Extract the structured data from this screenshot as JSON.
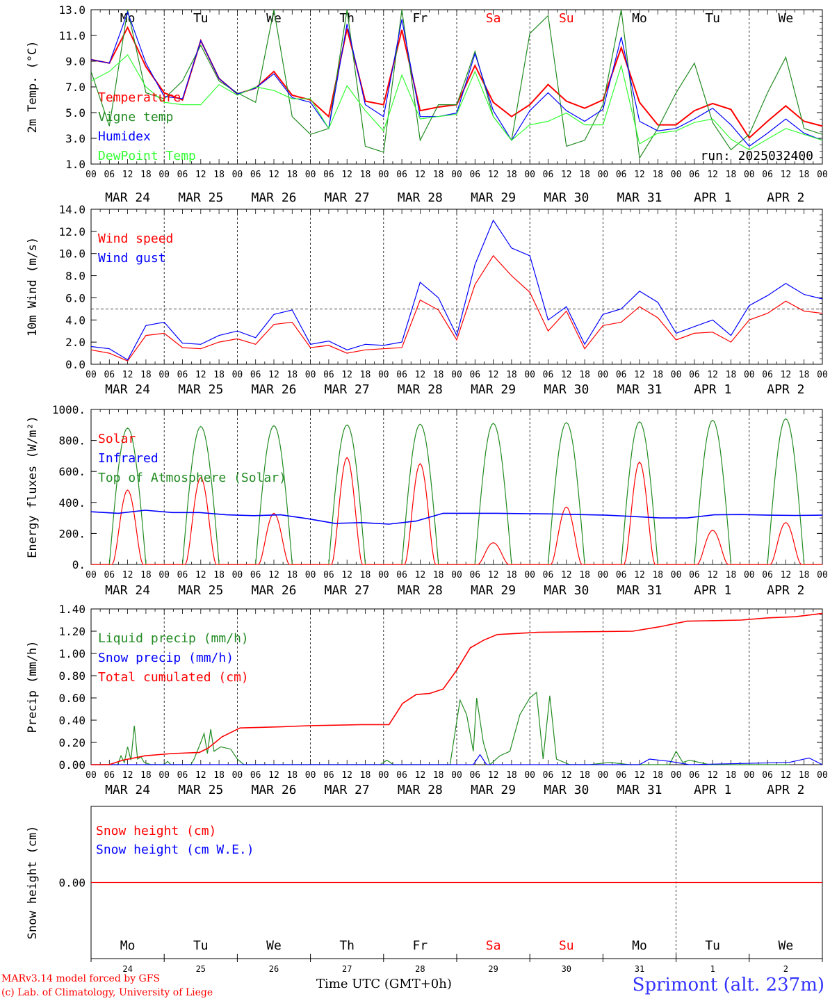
{
  "chart_data": [
    {
      "type": "line",
      "ylabel": "2m Temp. (°C)",
      "ylim": [
        1,
        14
      ],
      "yticks": [
        "1.0",
        "3.0",
        "5.0",
        "7.0",
        "9.0",
        "11.0",
        "13.0"
      ],
      "run_label": "run: 2025032400",
      "x_hours": [
        0,
        6,
        12,
        18,
        24,
        30,
        36,
        42,
        48,
        54,
        60,
        66,
        72,
        78,
        84,
        90,
        96,
        102,
        108,
        114,
        120,
        126,
        132,
        138,
        144,
        150,
        156,
        162,
        168,
        174,
        180,
        186,
        192,
        198,
        204,
        210,
        216,
        222,
        228,
        234,
        240
      ],
      "series": [
        {
          "name": "Temperature",
          "color": "#ff0000",
          "values": [
            9.8,
            9.5,
            12.5,
            9.2,
            7.0,
            6.4,
            11.4,
            8.2,
            6.9,
            7.4,
            8.8,
            6.8,
            6.4,
            5.0,
            12.4,
            6.3,
            6.0,
            12.3,
            5.5,
            5.8,
            6.0,
            9.3,
            6.2,
            5.0,
            6.0,
            7.7,
            6.3,
            5.7,
            6.4,
            10.8,
            6.2,
            4.3,
            4.3,
            5.5,
            6.1,
            5.6,
            3.2,
            4.6,
            5.9,
            4.6,
            4.2
          ]
        },
        {
          "name": "Vigne temp",
          "color": "#228b22",
          "values": [
            8.8,
            4.2,
            14.0,
            7.0,
            6.5,
            8.0,
            11.0,
            8.0,
            7.0,
            6.2,
            14.0,
            5.0,
            3.5,
            4.0,
            14.0,
            2.5,
            2.0,
            14.0,
            3.0,
            6.0,
            6.0,
            10.5,
            5.0,
            3.0,
            12.0,
            13.5,
            2.5,
            3.0,
            6.0,
            14.0,
            1.5,
            4.0,
            7.0,
            9.5,
            4.5,
            2.2,
            3.5,
            7.0,
            10.0,
            4.0,
            3.5
          ]
        },
        {
          "name": "Humidex",
          "color": "#0000ff",
          "values": [
            9.8,
            9.5,
            13.8,
            9.5,
            6.7,
            6.5,
            11.4,
            8.2,
            6.9,
            7.4,
            8.6,
            6.6,
            6.2,
            4.0,
            12.8,
            6.0,
            5.0,
            13.2,
            5.0,
            5.0,
            5.3,
            10.3,
            5.5,
            3.0,
            5.5,
            7.0,
            5.5,
            4.6,
            5.6,
            11.7,
            4.6,
            3.8,
            4.0,
            4.8,
            5.7,
            4.3,
            2.5,
            3.6,
            4.8,
            3.6,
            3.0
          ]
        },
        {
          "name": "DewPoint Temp",
          "color": "#33ff33",
          "values": [
            8.0,
            8.8,
            10.2,
            7.5,
            6.2,
            6.0,
            6.0,
            7.7,
            6.8,
            7.5,
            7.2,
            6.5,
            6.5,
            4.0,
            7.6,
            5.5,
            3.8,
            8.5,
            4.8,
            5.0,
            5.2,
            8.8,
            5.0,
            3.0,
            4.3,
            4.6,
            5.3,
            4.3,
            4.3,
            9.3,
            2.7,
            3.6,
            3.8,
            4.5,
            4.8,
            3.1,
            2.2,
            3.1,
            4.0,
            3.5,
            3.0
          ]
        }
      ]
    },
    {
      "type": "line",
      "ylabel": "10m Wind (m/s)",
      "ylim": [
        0,
        14
      ],
      "yticks": [
        "0.0",
        "2.0",
        "4.0",
        "6.0",
        "8.0",
        "10.0",
        "12.0",
        "14.0"
      ],
      "reference_line": 5,
      "x_hours": [
        0,
        6,
        12,
        18,
        24,
        30,
        36,
        42,
        48,
        54,
        60,
        66,
        72,
        78,
        84,
        90,
        96,
        102,
        108,
        114,
        120,
        126,
        132,
        138,
        144,
        150,
        156,
        162,
        168,
        174,
        180,
        186,
        192,
        198,
        204,
        210,
        216,
        222,
        228,
        234,
        240
      ],
      "series": [
        {
          "name": "Wind speed",
          "color": "#ff0000",
          "values": [
            1.3,
            1.0,
            0.3,
            2.6,
            2.8,
            1.5,
            1.4,
            2.0,
            2.3,
            1.8,
            3.6,
            3.8,
            1.5,
            1.7,
            1.0,
            1.3,
            1.4,
            1.5,
            5.8,
            4.9,
            2.2,
            7.2,
            9.8,
            8.0,
            6.5,
            3.0,
            4.8,
            1.4,
            3.5,
            3.8,
            5.2,
            4.2,
            2.2,
            2.8,
            2.9,
            2.0,
            4.0,
            4.6,
            5.7,
            4.8,
            4.6
          ]
        },
        {
          "name": "Wind gust",
          "color": "#0000ff",
          "values": [
            1.6,
            1.4,
            0.4,
            3.5,
            3.8,
            1.9,
            1.8,
            2.6,
            3.0,
            2.4,
            4.5,
            4.9,
            1.8,
            2.1,
            1.3,
            1.8,
            1.7,
            2.0,
            7.4,
            6.0,
            2.6,
            9.0,
            13.0,
            10.5,
            9.8,
            4.0,
            5.2,
            1.8,
            4.5,
            5.0,
            6.6,
            5.6,
            2.8,
            3.4,
            4.0,
            2.6,
            5.3,
            6.2,
            7.3,
            6.3,
            5.9
          ]
        }
      ]
    },
    {
      "type": "line",
      "ylabel": "Energy fluxes (W/m²)",
      "ylim": [
        0,
        1000
      ],
      "yticks": [
        "0.",
        "200.",
        "400.",
        "600.",
        "800.",
        "1000."
      ],
      "solar_peaks": [
        480,
        560,
        330,
        690,
        650,
        140,
        370,
        660,
        220,
        270
      ],
      "infrared": [
        340,
        330,
        350,
        335,
        335,
        320,
        315,
        320,
        295,
        265,
        270,
        260,
        280,
        330,
        330,
        330,
        328,
        326,
        322,
        318,
        310,
        300,
        300,
        320,
        322,
        318,
        316,
        318
      ],
      "series": [
        {
          "name": "Solar",
          "color": "#ff0000"
        },
        {
          "name": "Infrared",
          "color": "#0000ff"
        },
        {
          "name": "Top of Atmosphere (Solar)",
          "color": "#228b22",
          "daily_max": [
            880,
            890,
            895,
            900,
            905,
            910,
            915,
            920,
            930,
            940
          ]
        }
      ]
    },
    {
      "type": "line",
      "ylabel": "Precip (mm/h)",
      "ylim": [
        0,
        1.4
      ],
      "yticks": [
        "0.00",
        "0.20",
        "0.40",
        "0.60",
        "0.80",
        "1.00",
        "1.20",
        "1.40"
      ],
      "series": [
        {
          "name": "Liquid precip (mm/h)",
          "color": "#228b22"
        },
        {
          "name": "Snow precip (mm/h)",
          "color": "#0000ff"
        },
        {
          "name": "Total cumulated (cm)",
          "color": "#ff0000",
          "points": [
            [
              0,
              0
            ],
            [
              8,
              0
            ],
            [
              14,
              0.04
            ],
            [
              24,
              0.08
            ],
            [
              36,
              0.1
            ],
            [
              48,
              0.11
            ],
            [
              52,
              0.15
            ],
            [
              58,
              0.25
            ],
            [
              66,
              0.33
            ],
            [
              84,
              0.34
            ],
            [
              96,
              0.35
            ],
            [
              120,
              0.36
            ],
            [
              132,
              0.36
            ],
            [
              138,
              0.55
            ],
            [
              144,
              0.63
            ],
            [
              150,
              0.64
            ],
            [
              156,
              0.68
            ],
            [
              162,
              0.85
            ],
            [
              168,
              1.05
            ],
            [
              174,
              1.12
            ],
            [
              180,
              1.17
            ],
            [
              198,
              1.19
            ],
            [
              240,
              1.2
            ],
            [
              252,
              1.24
            ],
            [
              264,
              1.29
            ],
            [
              288,
              1.3
            ],
            [
              300,
              1.32
            ],
            [
              312,
              1.33
            ],
            [
              324,
              1.36
            ]
          ]
        }
      ],
      "liquid_points": [
        [
          0,
          0
        ],
        [
          16,
          0
        ],
        [
          18,
          0.08
        ],
        [
          20,
          0.02
        ],
        [
          22,
          0.16
        ],
        [
          24,
          0.04
        ],
        [
          26,
          0.35
        ],
        [
          28,
          0.05
        ],
        [
          30,
          0.07
        ],
        [
          32,
          0.02
        ],
        [
          36,
          0
        ],
        [
          44,
          0
        ],
        [
          46,
          0.03
        ],
        [
          48,
          0
        ],
        [
          60,
          0
        ],
        [
          62,
          0.05
        ],
        [
          66,
          0.2
        ],
        [
          68,
          0.28
        ],
        [
          70,
          0.1
        ],
        [
          72,
          0.32
        ],
        [
          74,
          0.12
        ],
        [
          78,
          0.16
        ],
        [
          84,
          0.14
        ],
        [
          88,
          0.05
        ],
        [
          92,
          0
        ],
        [
          174,
          0
        ],
        [
          178,
          0.04
        ],
        [
          182,
          0
        ],
        [
          216,
          0
        ],
        [
          222,
          0.58
        ],
        [
          226,
          0.45
        ],
        [
          230,
          0.12
        ],
        [
          232,
          0.6
        ],
        [
          236,
          0.2
        ],
        [
          240,
          0
        ],
        [
          246,
          0.08
        ],
        [
          252,
          0.12
        ],
        [
          258,
          0.45
        ],
        [
          264,
          0.6
        ],
        [
          268,
          0.65
        ],
        [
          272,
          0.05
        ],
        [
          276,
          0.62
        ],
        [
          280,
          0.05
        ],
        [
          288,
          0
        ],
        [
          300,
          0
        ],
        [
          312,
          0.02
        ],
        [
          324,
          0
        ],
        [
          348,
          0
        ],
        [
          352,
          0.12
        ],
        [
          356,
          0.02
        ],
        [
          360,
          0.04
        ],
        [
          372,
          0
        ],
        [
          420,
          0
        ]
      ],
      "snow_points": [
        [
          0,
          0
        ],
        [
          230,
          0
        ],
        [
          234,
          0.09
        ],
        [
          238,
          0
        ],
        [
          330,
          0
        ],
        [
          336,
          0.05
        ],
        [
          348,
          0.03
        ],
        [
          360,
          0
        ],
        [
          420,
          0.02
        ],
        [
          432,
          0.06
        ],
        [
          440,
          0
        ]
      ]
    },
    {
      "type": "line",
      "ylabel": "Snow height (cm)",
      "yticks": [
        "0.00"
      ],
      "series": [
        {
          "name": "Snow height (cm)",
          "color": "#ff0000",
          "values": [
            0,
            0
          ]
        },
        {
          "name": "Snow height (cm W.E.)",
          "color": "#0000ff"
        }
      ]
    }
  ],
  "axes": {
    "hour_labels": [
      "00",
      "06",
      "12",
      "18"
    ],
    "date_labels": [
      "MAR 24",
      "MAR 25",
      "MAR 26",
      "MAR 27",
      "MAR 28",
      "MAR 29",
      "MAR 30",
      "MAR 31",
      "APR  1",
      "APR  2"
    ],
    "weekdays": [
      "Mo",
      "Tu",
      "We",
      "Th",
      "Fr",
      "Sa",
      "Su",
      "Mo",
      "Tu",
      "We"
    ],
    "weekend_flags": [
      false,
      false,
      false,
      false,
      false,
      true,
      true,
      false,
      false,
      false
    ],
    "day_numbers": [
      "24",
      "25",
      "26",
      "27",
      "28",
      "29",
      "30",
      "31",
      "1",
      "2"
    ],
    "time_label": "Time UTC (GMT+0h)",
    "time_label_overlay": "MAR"
  },
  "footer": {
    "credit_line1": "MARv3.14 model forced by GFS",
    "credit_line2": "(c) Lab. of Climatology, University of Liege",
    "station": "Sprimont (alt. 237m)"
  },
  "colors": {
    "red": "#ff0000",
    "green": "#228b22",
    "blue": "#0000ff",
    "lightgreen": "#33ff33",
    "weekend": "#ff0000"
  }
}
